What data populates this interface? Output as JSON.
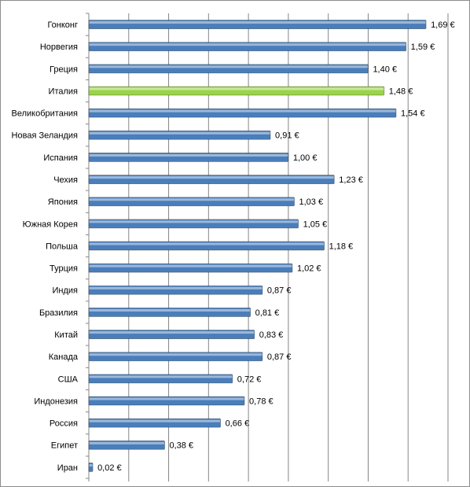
{
  "chart_data": {
    "type": "hbar",
    "categories": [
      "Гонконг",
      "Норвегия",
      "Греция",
      "Италия",
      "Великобритания",
      "Новая Зеландия",
      "Испания",
      "Чехия",
      "Япония",
      "Южная Корея",
      "Польша",
      "Турция",
      "Индия",
      "Бразилия",
      "Китай",
      "Канада",
      "США",
      "Индонезия",
      "Россия",
      "Египет",
      "Иран"
    ],
    "values": [
      1.69,
      1.59,
      1.4,
      1.48,
      1.54,
      0.91,
      1.0,
      1.23,
      1.03,
      1.05,
      1.18,
      1.02,
      0.87,
      0.81,
      0.83,
      0.87,
      0.72,
      0.78,
      0.66,
      0.38,
      0.02
    ],
    "value_labels": [
      "1,69 €",
      "1,59 €",
      "1,40 €",
      "1,48 €",
      "1,54 €",
      "0,91 €",
      "1,00 €",
      "1,23 €",
      "1,03 €",
      "1,05 €",
      "1,18 €",
      "1,02 €",
      "0,87 €",
      "0,81 €",
      "0,83 €",
      "0,87 €",
      "0,72 €",
      "0,78 €",
      "0,66 €",
      "0,38 €",
      "0,02 €"
    ],
    "colors": [
      "#4a7ebb",
      "#4a7ebb",
      "#4a7ebb",
      "#9bd34a",
      "#4a7ebb",
      "#4a7ebb",
      "#4a7ebb",
      "#4a7ebb",
      "#4a7ebb",
      "#4a7ebb",
      "#4a7ebb",
      "#4a7ebb",
      "#4a7ebb",
      "#4a7ebb",
      "#4a7ebb",
      "#4a7ebb",
      "#4a7ebb",
      "#4a7ebb",
      "#4a7ebb",
      "#4a7ebb",
      "#4a7ebb"
    ],
    "xlim": [
      0,
      1.8
    ],
    "xticks": [
      0,
      0.2,
      0.4,
      0.6,
      0.8,
      1.0,
      1.2,
      1.4,
      1.6,
      1.8
    ],
    "grid": true
  }
}
